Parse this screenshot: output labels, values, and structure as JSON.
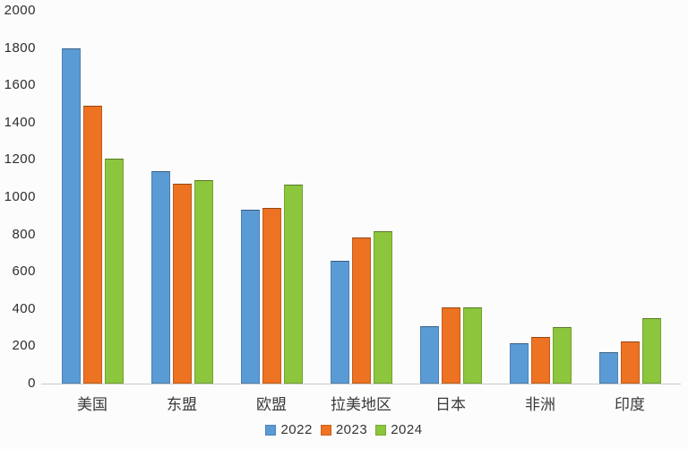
{
  "chart_data": {
    "type": "bar",
    "title": "",
    "categories": [
      "美国",
      "东盟",
      "欧盟",
      "拉美地区",
      "日本",
      "非洲",
      "印度"
    ],
    "series": [
      {
        "name": "2022",
        "color": "#5B9BD5",
        "values": [
          1800,
          1140,
          935,
          660,
          310,
          215,
          170
        ]
      },
      {
        "name": "2023",
        "color": "#ED7221",
        "values": [
          1490,
          1070,
          940,
          785,
          410,
          250,
          225
        ]
      },
      {
        "name": "2024",
        "color": "#8CC63C",
        "values": [
          1205,
          1090,
          1065,
          815,
          410,
          305,
          350
        ]
      }
    ],
    "ylim": [
      0,
      2000
    ],
    "yticks": [
      0,
      200,
      400,
      600,
      800,
      1000,
      1200,
      1400,
      1600,
      1800,
      2000
    ],
    "grid": false,
    "legend_position": "bottom"
  },
  "colors": {
    "background": "#fcfcfc",
    "axis_line": "#c9c9c9",
    "tick_text": "#2e2e2e",
    "category_text": "#3a3a3a"
  }
}
